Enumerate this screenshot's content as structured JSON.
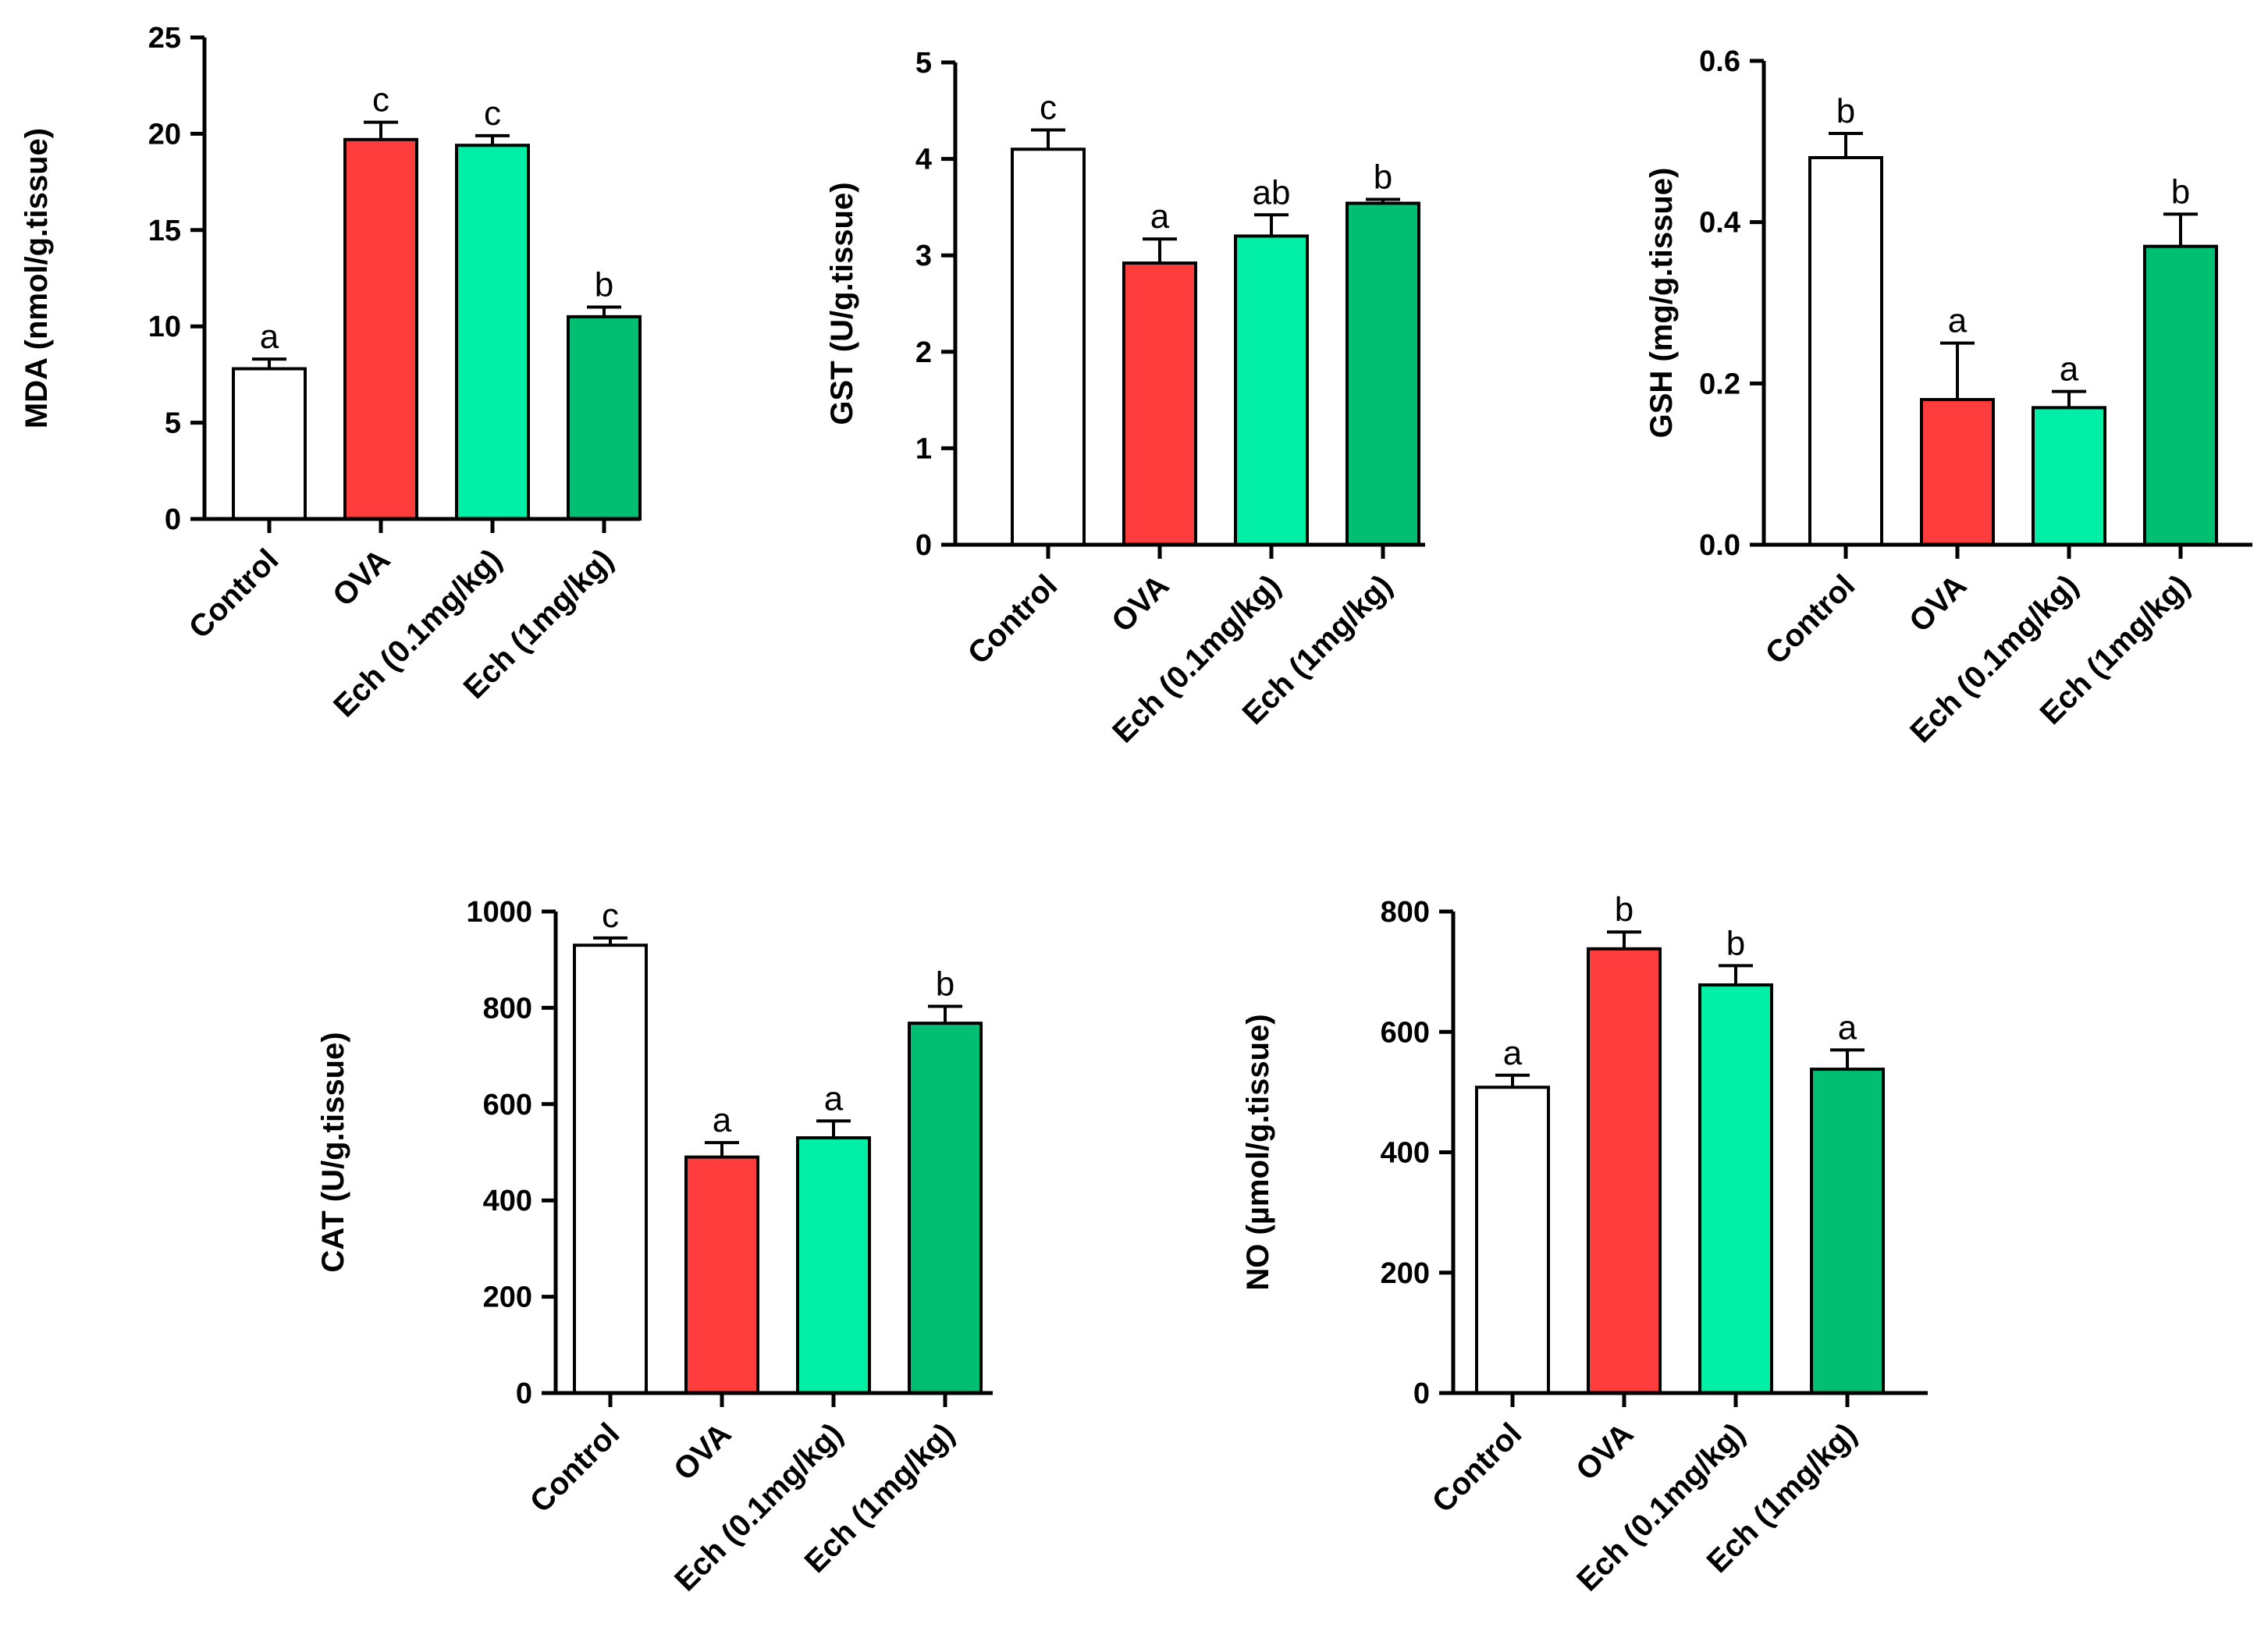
{
  "colors": {
    "control": "#ffffff",
    "ova": "#ff3d3d",
    "ech_low": "#00eea6",
    "ech_high": "#00bf72",
    "axis": "#000000"
  },
  "chart_data": [
    {
      "type": "bar",
      "ylabel": "MDA (nmol/g.tissue)",
      "categories": [
        "Control",
        "OVA",
        "Ech (0.1mg/kg)",
        "Ech (1mg/kg)"
      ],
      "values": [
        7.8,
        19.7,
        19.4,
        10.5
      ],
      "errors": [
        0.5,
        0.9,
        0.5,
        0.5
      ],
      "significance": [
        "a",
        "c",
        "c",
        "b"
      ],
      "ylim": [
        0,
        25
      ],
      "yticks": [
        0,
        5,
        10,
        15,
        20,
        25
      ],
      "ytick_labels": [
        "0",
        "5",
        "10",
        "15",
        "20",
        "25"
      ]
    },
    {
      "type": "bar",
      "ylabel": "GST (U/g.tissue)",
      "categories": [
        "Control",
        "OVA",
        "Ech (0.1mg/kg)",
        "Ech (1mg/kg)"
      ],
      "values": [
        4.1,
        2.92,
        3.2,
        3.54
      ],
      "errors": [
        0.2,
        0.25,
        0.22,
        0.04
      ],
      "significance": [
        "c",
        "a",
        "ab",
        "b"
      ],
      "ylim": [
        0,
        5
      ],
      "yticks": [
        0,
        1,
        2,
        3,
        4,
        5
      ],
      "ytick_labels": [
        "0",
        "1",
        "2",
        "3",
        "4",
        "5"
      ]
    },
    {
      "type": "bar",
      "ylabel": "GSH (mg/g.tissue)",
      "categories": [
        "Control",
        "OVA",
        "Ech (0.1mg/kg)",
        "Ech (1mg/kg)"
      ],
      "values": [
        0.48,
        0.18,
        0.17,
        0.37
      ],
      "errors": [
        0.03,
        0.07,
        0.02,
        0.04
      ],
      "significance": [
        "b",
        "a",
        "a",
        "b"
      ],
      "ylim": [
        0,
        0.6
      ],
      "yticks": [
        0,
        0.2,
        0.4,
        0.6
      ],
      "ytick_labels": [
        "0.0",
        "0.2",
        "0.4",
        "0.6"
      ]
    },
    {
      "type": "bar",
      "ylabel": "CAT (U/g.tissue)",
      "categories": [
        "Control",
        "OVA",
        "Ech (0.1mg/kg)",
        "Ech (1mg/kg)"
      ],
      "values": [
        930,
        490,
        530,
        768
      ],
      "errors": [
        15,
        30,
        35,
        35
      ],
      "significance": [
        "c",
        "a",
        "a",
        "b"
      ],
      "ylim": [
        0,
        1000
      ],
      "yticks": [
        0,
        200,
        400,
        600,
        800,
        1000
      ],
      "ytick_labels": [
        "0",
        "200",
        "400",
        "600",
        "800",
        "1000"
      ]
    },
    {
      "type": "bar",
      "ylabel": "NO (µmol/g.tissue)",
      "categories": [
        "Control",
        "OVA",
        "Ech (0.1mg/kg)",
        "Ech (1mg/kg)"
      ],
      "values": [
        508,
        738,
        678,
        538
      ],
      "errors": [
        20,
        28,
        32,
        32
      ],
      "significance": [
        "a",
        "b",
        "b",
        "a"
      ],
      "ylim": [
        0,
        800
      ],
      "yticks": [
        0,
        200,
        400,
        600,
        800
      ],
      "ytick_labels": [
        "0",
        "200",
        "400",
        "600",
        "800"
      ]
    }
  ]
}
